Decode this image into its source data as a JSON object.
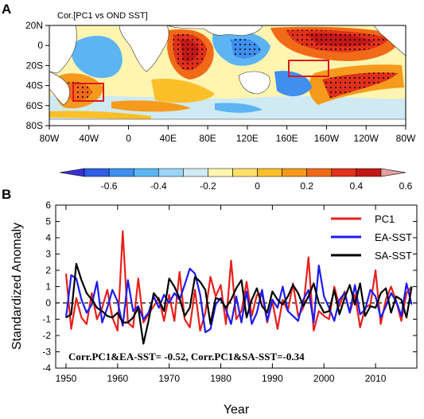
{
  "panel_a": {
    "letter": "A",
    "title": "Cor.[PC1 vs OND SST]",
    "lat_ticks": [
      "20N",
      "0",
      "20S",
      "40S",
      "60S",
      "80S"
    ],
    "lon_ticks": [
      "80W",
      "40W",
      "0",
      "40E",
      "80E",
      "120E",
      "160E",
      "160W",
      "120W",
      "80W"
    ],
    "colorbar_labels": [
      "-0.6",
      "-0.4",
      "-0.2",
      "0",
      "0.2",
      "0.4",
      "0.6"
    ],
    "colorbar_colors": [
      "#3a2fd6",
      "#2f5fe6",
      "#3e8ff0",
      "#5cb4f2",
      "#9bd4f5",
      "#cfeaf3",
      "#fff5b0",
      "#fde06a",
      "#fbbf2a",
      "#f59a1c",
      "#f06a17",
      "#e0301b",
      "#c21818",
      "#e3a0a0"
    ]
  },
  "panel_b": {
    "letter": "B",
    "ylabel": "Standardized Anomaly",
    "xlabel": "Year",
    "annotation": "Corr.PC1&EA-SST= -0.52,  Corr.PC1&SA-SST=-0.34",
    "legend": [
      {
        "name": "PC1",
        "color": "#e8201b"
      },
      {
        "name": "EA-SST",
        "color": "#1b1bf0"
      },
      {
        "name": "SA-SST",
        "color": "#000000"
      }
    ]
  },
  "chart_data": {
    "type": "line",
    "x": [
      1950,
      1951,
      1952,
      1953,
      1954,
      1955,
      1956,
      1957,
      1958,
      1959,
      1960,
      1961,
      1962,
      1963,
      1964,
      1965,
      1966,
      1967,
      1968,
      1969,
      1970,
      1971,
      1972,
      1973,
      1974,
      1975,
      1976,
      1977,
      1978,
      1979,
      1980,
      1981,
      1982,
      1983,
      1984,
      1985,
      1986,
      1987,
      1988,
      1989,
      1990,
      1991,
      1992,
      1993,
      1994,
      1995,
      1996,
      1997,
      1998,
      1999,
      2000,
      2001,
      2002,
      2003,
      2004,
      2005,
      2006,
      2007,
      2008,
      2009,
      2010,
      2011,
      2012,
      2013,
      2014,
      2015,
      2016,
      2017
    ],
    "xlabel": "Year",
    "ylabel": "Standardized Anomaly",
    "xlim": [
      1948,
      2018
    ],
    "ylim": [
      -4,
      6
    ],
    "xticks": [
      1950,
      1960,
      1970,
      1980,
      1990,
      2000,
      2010
    ],
    "yticks": [
      -4,
      -3,
      -2,
      -1,
      0,
      1,
      2,
      3,
      4,
      5,
      6
    ],
    "hline": 0,
    "legend_position": "top-right",
    "series": [
      {
        "name": "PC1",
        "color": "#e8201b",
        "values": [
          1.8,
          -1.6,
          0.3,
          -0.9,
          -1.3,
          0.6,
          -1.0,
          -0.3,
          0.8,
          -0.9,
          -1.7,
          4.4,
          -1.2,
          -1.5,
          1.5,
          -1.2,
          -0.7,
          -0.2,
          0.3,
          -1.1,
          0.5,
          -1.1,
          1.9,
          -1.0,
          -1.5,
          0.8,
          -1.7,
          -0.6,
          1.6,
          0.4,
          1.1,
          -1.3,
          2.6,
          -1.0,
          -0.5,
          1.3,
          -0.8,
          0.5,
          0.6,
          -1.2,
          0.1,
          -1.6,
          0.2,
          -0.5,
          1.2,
          -0.8,
          -0.3,
          2.8,
          -1.7,
          -0.5,
          -0.8,
          -1.0,
          1.0,
          -0.2,
          0.7,
          -0.6,
          0.5,
          -1.5,
          -0.3,
          -0.1,
          2.0,
          -1.3,
          0.2,
          1.0,
          0.1,
          -1.1,
          0.6,
          1.0
        ]
      },
      {
        "name": "EA-SST",
        "color": "#1b1bf0",
        "values": [
          -0.9,
          1.7,
          1.5,
          0.2,
          -0.6,
          -0.1,
          1.3,
          -1.2,
          -0.3,
          0.8,
          0.1,
          -1.4,
          1.4,
          -0.5,
          -0.2,
          -1.0,
          -0.6,
          0.4,
          -0.3,
          0.5,
          0.0,
          0.6,
          0.2,
          1.1,
          2.1,
          1.8,
          0.5,
          -1.8,
          -1.6,
          -0.1,
          0.3,
          -0.4,
          -1.3,
          0.4,
          -1.2,
          0.7,
          -1.3,
          -0.6,
          0.8,
          -1.1,
          0.2,
          -0.3,
          1.0,
          -0.5,
          -0.8,
          -1.1,
          0.2,
          0.8,
          -1.2,
          2.3,
          0.4,
          -0.3,
          -1.1,
          0.2,
          0.6,
          -0.6,
          1.1,
          -0.7,
          -0.4,
          0.8,
          0.4,
          -0.9,
          -0.2,
          0.6,
          0.1,
          -0.8,
          1.2,
          -0.1
        ]
      },
      {
        "name": "SA-SST",
        "color": "#000000",
        "values": [
          -0.9,
          -0.7,
          2.4,
          1.4,
          0.6,
          0.2,
          -0.3,
          -0.5,
          -0.8,
          -0.9,
          -0.6,
          -1.2,
          -1.2,
          -0.9,
          -0.3,
          -2.5,
          -1.1,
          0.6,
          0.2,
          -0.5,
          1.5,
          1.0,
          0.3,
          -0.8,
          -0.3,
          1.6,
          1.3,
          0.8,
          -1.3,
          0.3,
          0.2,
          -0.3,
          0.2,
          0.9,
          1.4,
          -0.9,
          0.2,
          0.9,
          -0.2,
          -0.6,
          0.7,
          0.2,
          -0.1,
          0.4,
          1.1,
          0.6,
          -0.2,
          0.4,
          1.2,
          0.0,
          -0.6,
          -0.5,
          0.8,
          -0.7,
          0.3,
          1.1,
          -0.1,
          1.2,
          -0.8,
          -0.2,
          -0.3,
          0.6,
          0.9,
          -0.6,
          0.4,
          0.2,
          -0.9,
          1.0
        ]
      }
    ]
  }
}
